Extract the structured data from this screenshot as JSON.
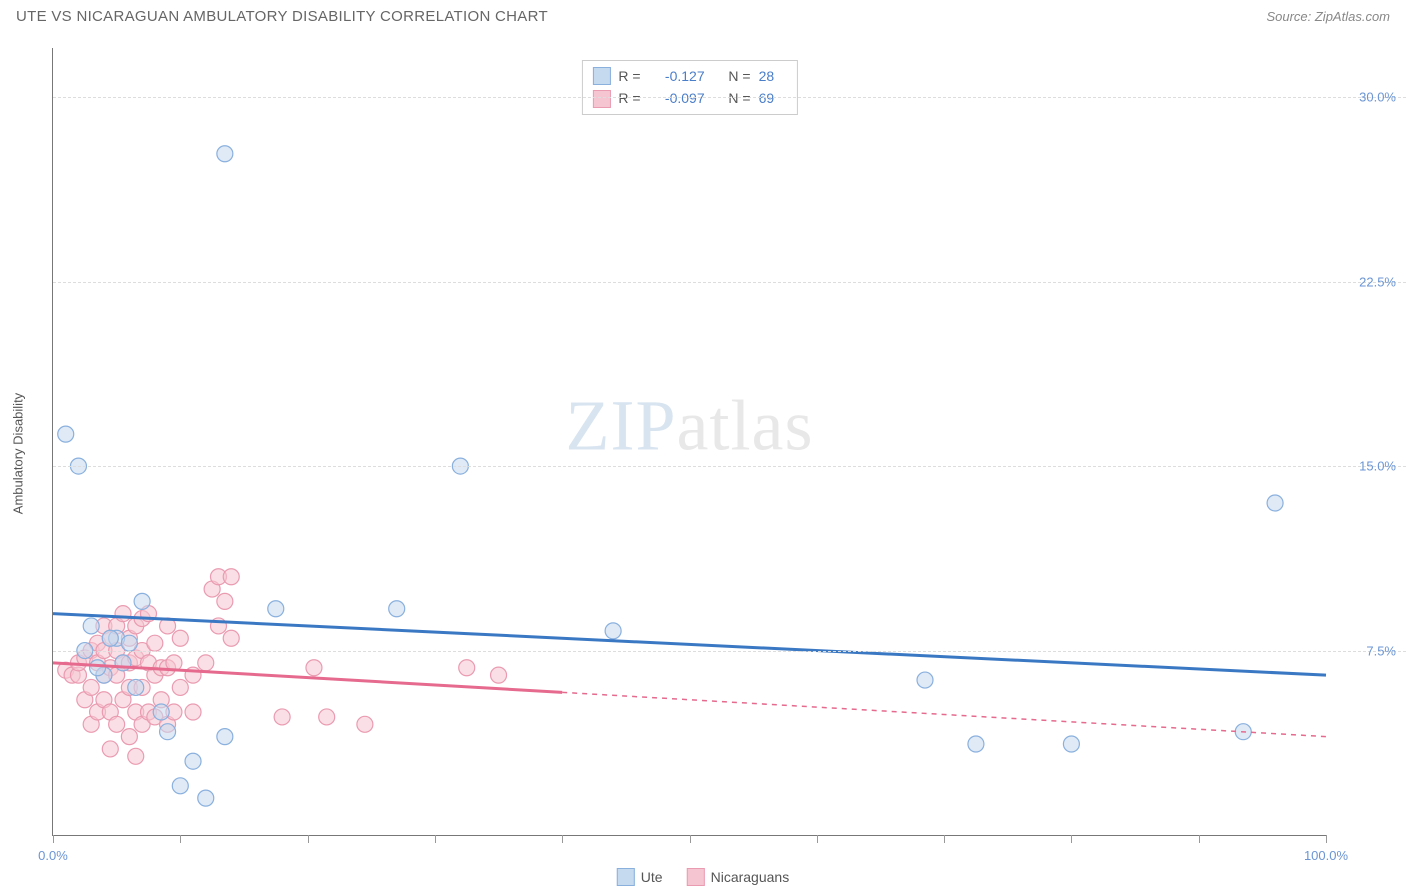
{
  "header": {
    "title": "UTE VS NICARAGUAN AMBULATORY DISABILITY CORRELATION CHART",
    "source": "Source: ZipAtlas.com"
  },
  "axes": {
    "y_label": "Ambulatory Disability",
    "x_min": 0.0,
    "x_max": 100.0,
    "y_min": 0.0,
    "y_max": 32.0,
    "x_ticks": [
      0,
      10,
      20,
      30,
      40,
      50,
      60,
      70,
      80,
      90,
      100
    ],
    "x_tick_labels": {
      "0": "0.0%",
      "100": "100.0%"
    },
    "y_gridlines": [
      7.5,
      15.0,
      22.5,
      30.0
    ],
    "y_tick_labels": [
      "7.5%",
      "15.0%",
      "22.5%",
      "30.0%"
    ]
  },
  "watermark": {
    "zip": "ZIP",
    "atlas": "atlas"
  },
  "colors": {
    "ute_fill": "#c5d9ef",
    "ute_stroke": "#8ab0de",
    "nic_fill": "#f5c6d2",
    "nic_stroke": "#ea9bb1",
    "ute_line": "#3b78c4",
    "nic_line": "#e56a8e",
    "grid": "#dddddd",
    "axis": "#777777",
    "tick_text": "#6b95d4",
    "label_text": "#555555",
    "title_text": "#666666",
    "source_text": "#888888",
    "stat_val": "#4a7ec9"
  },
  "stats": {
    "rows": [
      {
        "swatch_fill": "#c5d9ef",
        "swatch_stroke": "#8ab0de",
        "r": "-0.127",
        "n": "28"
      },
      {
        "swatch_fill": "#f5c6d2",
        "swatch_stroke": "#ea9bb1",
        "r": "-0.097",
        "n": "69"
      }
    ],
    "r_label": "R =",
    "n_label": "N ="
  },
  "legend": {
    "items": [
      {
        "label": "Ute",
        "fill": "#c5d9ef",
        "stroke": "#8ab0de"
      },
      {
        "label": "Nicaraguans",
        "fill": "#f5c6d2",
        "stroke": "#ea9bb1"
      }
    ]
  },
  "series": {
    "marker_radius": 8,
    "ute": {
      "points": [
        [
          1.0,
          16.3
        ],
        [
          2.0,
          15.0
        ],
        [
          13.5,
          27.7
        ],
        [
          7.0,
          9.5
        ],
        [
          5.0,
          8.0
        ],
        [
          4.5,
          8.0
        ],
        [
          6.0,
          7.8
        ],
        [
          5.5,
          7.0
        ],
        [
          4.0,
          6.5
        ],
        [
          3.0,
          8.5
        ],
        [
          17.5,
          9.2
        ],
        [
          27.0,
          9.2
        ],
        [
          32.0,
          15.0
        ],
        [
          9.0,
          4.2
        ],
        [
          13.5,
          4.0
        ],
        [
          10.0,
          2.0
        ],
        [
          44.0,
          8.3
        ],
        [
          68.5,
          6.3
        ],
        [
          72.5,
          3.7
        ],
        [
          80.0,
          3.7
        ],
        [
          93.5,
          4.2
        ],
        [
          96.0,
          13.5
        ],
        [
          12.0,
          1.5
        ],
        [
          2.5,
          7.5
        ],
        [
          3.5,
          6.8
        ],
        [
          6.5,
          6.0
        ],
        [
          8.5,
          5.0
        ],
        [
          11.0,
          3.0
        ]
      ],
      "trend": {
        "x1": 0,
        "y1": 9.0,
        "x2": 100,
        "y2": 6.5,
        "solid_until_x": 100
      }
    },
    "nic": {
      "points": [
        [
          1.0,
          6.7
        ],
        [
          1.5,
          6.5
        ],
        [
          2.0,
          6.5
        ],
        [
          2.0,
          7.0
        ],
        [
          2.5,
          7.2
        ],
        [
          2.5,
          5.5
        ],
        [
          3.0,
          7.5
        ],
        [
          3.0,
          6.0
        ],
        [
          3.0,
          4.5
        ],
        [
          3.5,
          7.8
        ],
        [
          3.5,
          7.0
        ],
        [
          3.5,
          5.0
        ],
        [
          4.0,
          7.5
        ],
        [
          4.0,
          6.5
        ],
        [
          4.0,
          5.5
        ],
        [
          4.0,
          8.5
        ],
        [
          4.5,
          8.0
        ],
        [
          4.5,
          6.8
        ],
        [
          4.5,
          5.0
        ],
        [
          4.5,
          3.5
        ],
        [
          5.0,
          7.5
        ],
        [
          5.0,
          6.5
        ],
        [
          5.0,
          8.5
        ],
        [
          5.0,
          4.5
        ],
        [
          5.5,
          9.0
        ],
        [
          5.5,
          7.0
        ],
        [
          5.5,
          5.5
        ],
        [
          6.0,
          8.0
        ],
        [
          6.0,
          7.0
        ],
        [
          6.0,
          6.0
        ],
        [
          6.0,
          4.0
        ],
        [
          6.5,
          8.5
        ],
        [
          6.5,
          7.2
        ],
        [
          6.5,
          5.0
        ],
        [
          6.5,
          3.2
        ],
        [
          7.0,
          8.8
        ],
        [
          7.0,
          7.5
        ],
        [
          7.0,
          6.0
        ],
        [
          7.0,
          4.5
        ],
        [
          7.5,
          9.0
        ],
        [
          7.5,
          7.0
        ],
        [
          7.5,
          5.0
        ],
        [
          8.0,
          7.8
        ],
        [
          8.0,
          6.5
        ],
        [
          8.0,
          4.8
        ],
        [
          8.5,
          6.8
        ],
        [
          8.5,
          5.5
        ],
        [
          9.0,
          8.5
        ],
        [
          9.0,
          6.8
        ],
        [
          9.0,
          4.5
        ],
        [
          9.5,
          7.0
        ],
        [
          9.5,
          5.0
        ],
        [
          10.0,
          8.0
        ],
        [
          10.0,
          6.0
        ],
        [
          11.0,
          6.5
        ],
        [
          11.0,
          5.0
        ],
        [
          12.0,
          7.0
        ],
        [
          12.5,
          10.0
        ],
        [
          13.0,
          8.5
        ],
        [
          13.0,
          10.5
        ],
        [
          13.5,
          9.5
        ],
        [
          14.0,
          10.5
        ],
        [
          14.0,
          8.0
        ],
        [
          18.0,
          4.8
        ],
        [
          20.5,
          6.8
        ],
        [
          21.5,
          4.8
        ],
        [
          24.5,
          4.5
        ],
        [
          32.5,
          6.8
        ],
        [
          35.0,
          6.5
        ]
      ],
      "trend": {
        "x1": 0,
        "y1": 7.0,
        "x2": 100,
        "y2": 4.0,
        "solid_until_x": 40
      }
    }
  }
}
